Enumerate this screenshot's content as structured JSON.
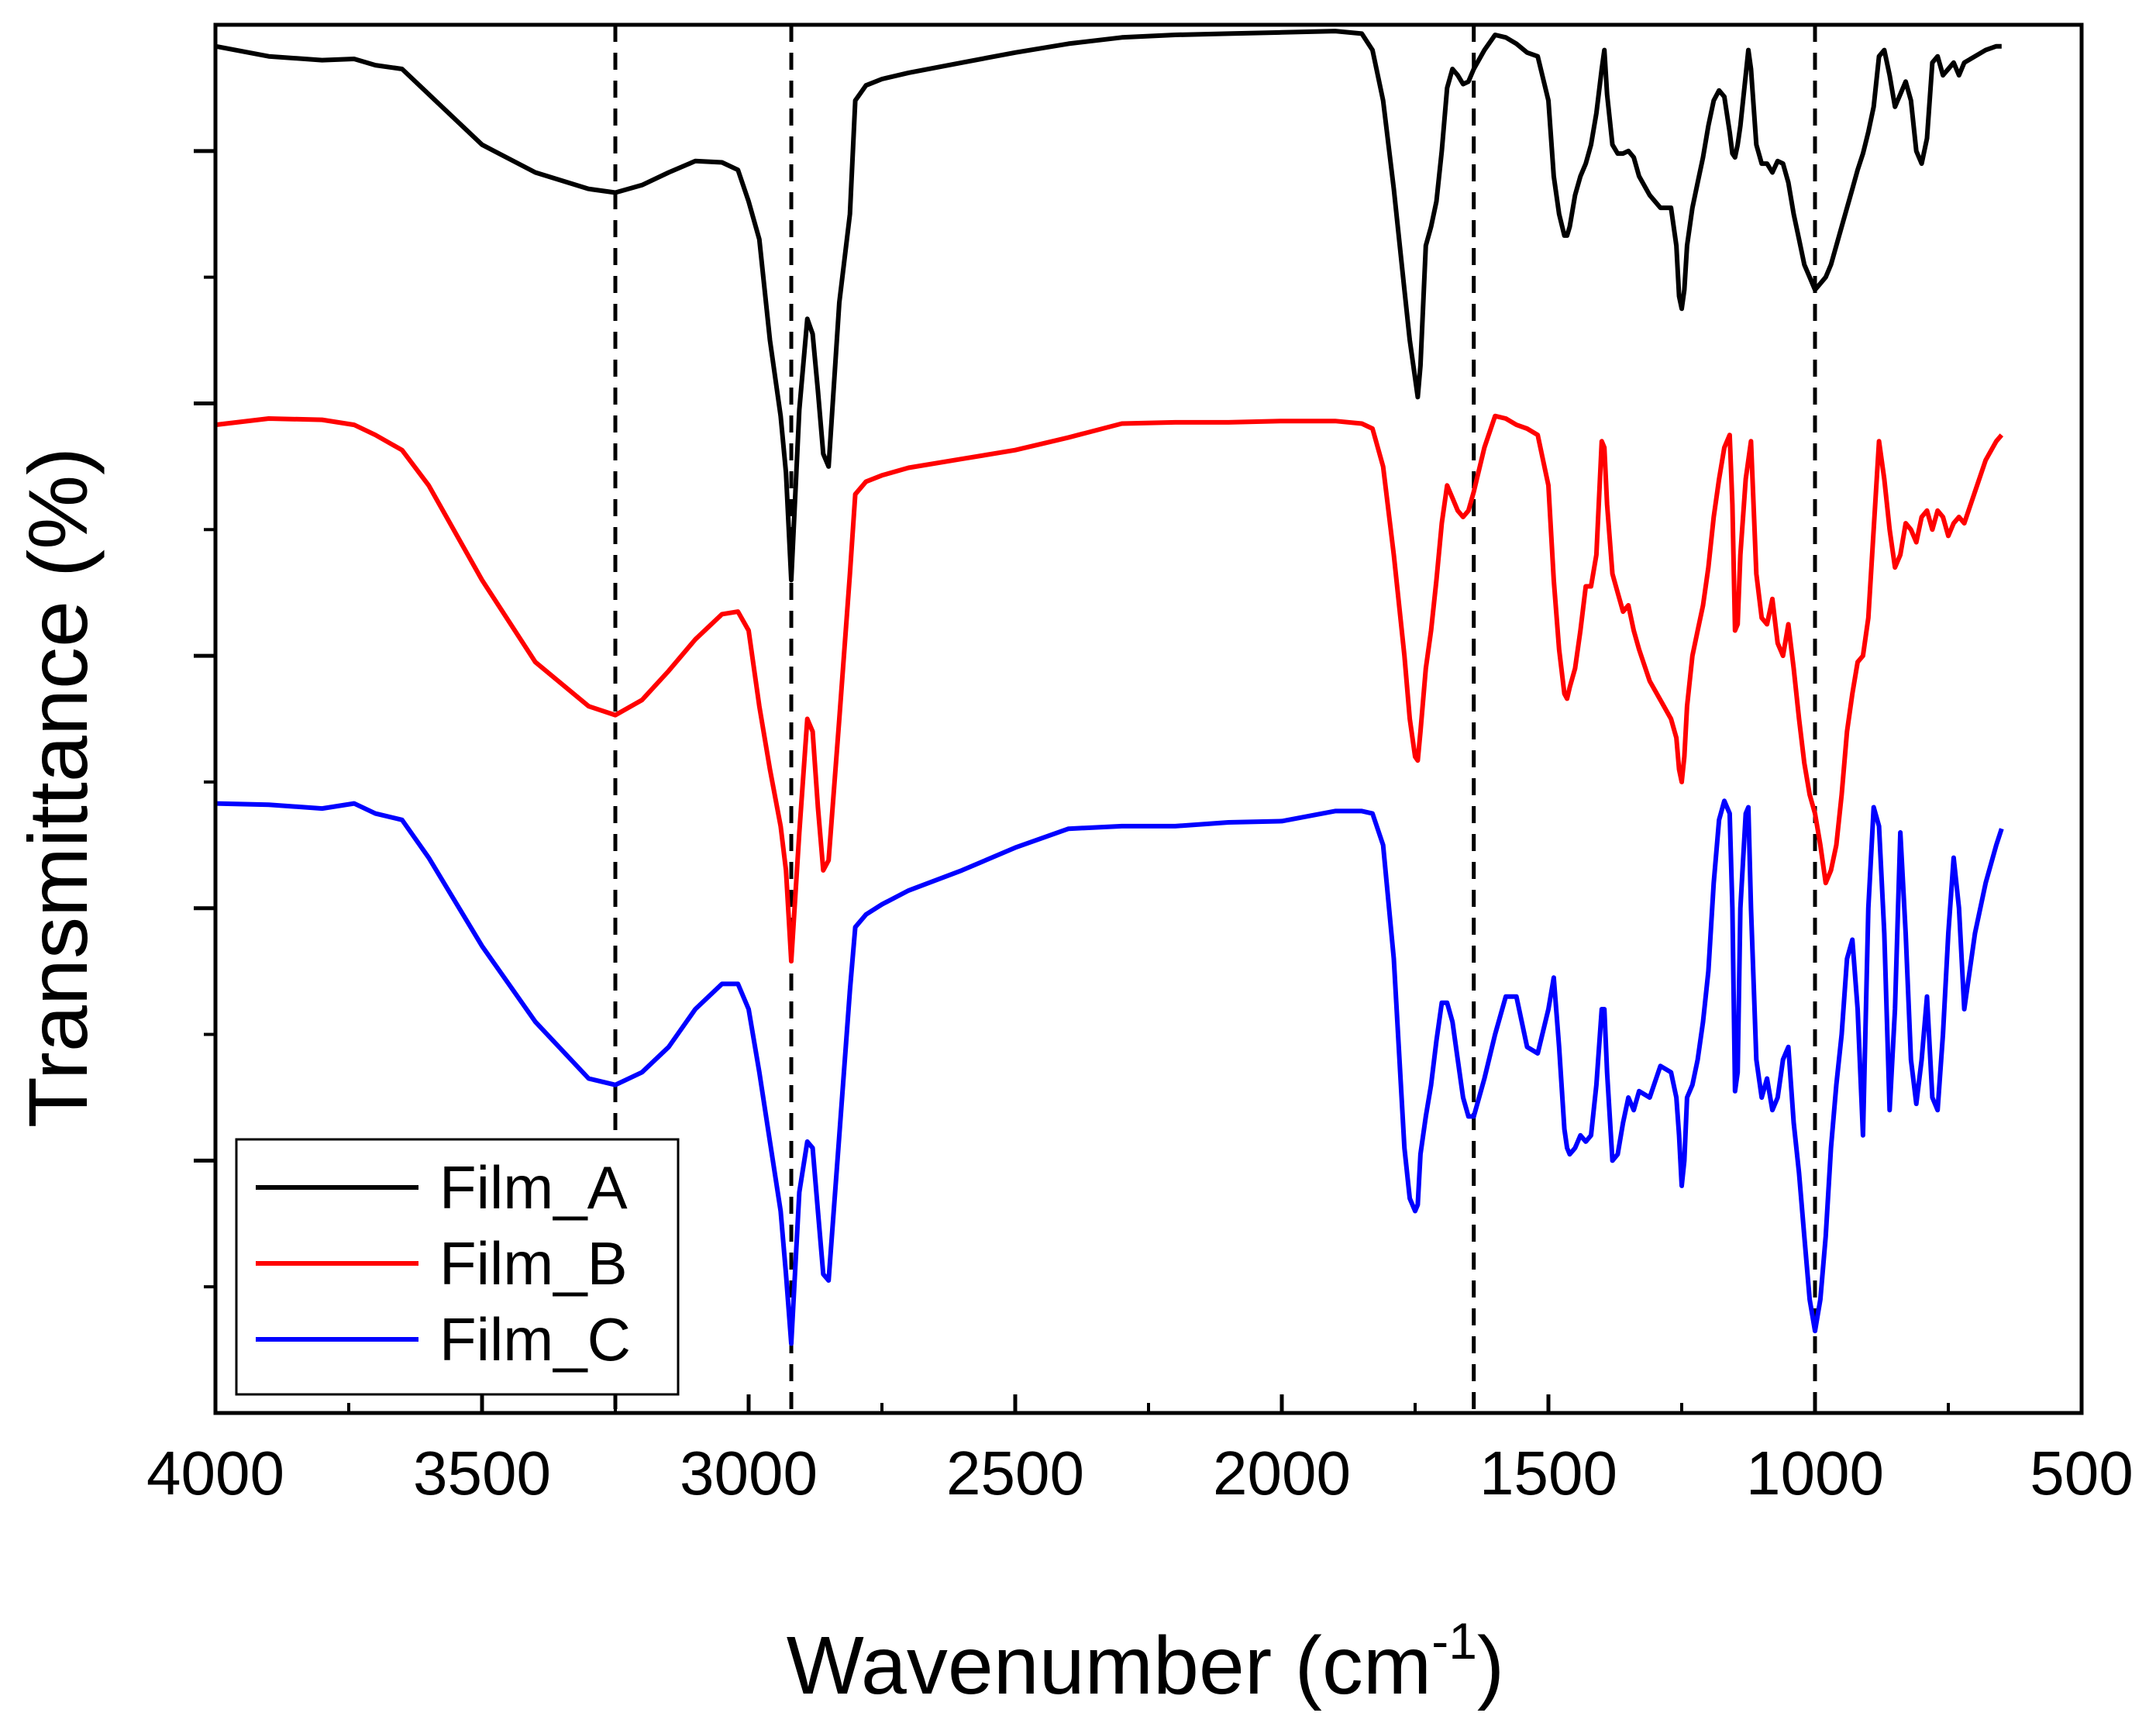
{
  "chart_data": {
    "type": "line",
    "title": "",
    "xlabel": "Wavenumber (cm",
    "xlabel_superscript": "-1",
    "xlabel_close": ")",
    "ylabel": "Transmittance (%)",
    "xlim": [
      4000,
      500
    ],
    "ylim": [
      0,
      110
    ],
    "x_reversed": true,
    "y_tick_labels_shown": false,
    "x_ticks": [
      4000,
      3500,
      3000,
      2500,
      2000,
      1500,
      1000,
      500
    ],
    "x_tick_labels": [
      "4000",
      "3500",
      "3000",
      "2500",
      "2000",
      "1500",
      "1000",
      "500"
    ],
    "y_major_ticks": [
      20,
      40,
      60,
      80,
      100
    ],
    "y_minor_ticks": [
      10,
      30,
      50,
      70,
      90
    ],
    "reference_lines": [
      3250,
      2920,
      1640,
      1000
    ],
    "legend": {
      "position": "bottom-left",
      "entries": [
        "Film_A",
        "Film_B",
        "Film_C"
      ]
    },
    "series": [
      {
        "name": "Film_A",
        "color": "#000000",
        "x": [
          4000,
          3900,
          3800,
          3740,
          3700,
          3650,
          3600,
          3500,
          3400,
          3300,
          3250,
          3200,
          3150,
          3100,
          3050,
          3020,
          3000,
          2980,
          2960,
          2940,
          2930,
          2920,
          2905,
          2890,
          2880,
          2870,
          2860,
          2850,
          2830,
          2810,
          2800,
          2780,
          2750,
          2700,
          2600,
          2500,
          2400,
          2300,
          2200,
          2100,
          2000,
          1900,
          1850,
          1830,
          1810,
          1790,
          1770,
          1760,
          1750,
          1745,
          1740,
          1730,
          1720,
          1710,
          1700,
          1690,
          1680,
          1670,
          1660,
          1650,
          1640,
          1620,
          1600,
          1580,
          1560,
          1540,
          1520,
          1500,
          1490,
          1480,
          1470,
          1465,
          1460,
          1450,
          1440,
          1430,
          1420,
          1410,
          1400,
          1395,
          1390,
          1380,
          1370,
          1360,
          1350,
          1340,
          1330,
          1310,
          1290,
          1270,
          1260,
          1255,
          1250,
          1245,
          1240,
          1230,
          1220,
          1210,
          1200,
          1190,
          1180,
          1170,
          1160,
          1155,
          1150,
          1145,
          1140,
          1130,
          1125,
          1120,
          1110,
          1100,
          1090,
          1080,
          1070,
          1060,
          1050,
          1040,
          1030,
          1020,
          1010,
          1000,
          990,
          980,
          970,
          960,
          950,
          940,
          930,
          920,
          910,
          900,
          890,
          880,
          870,
          860,
          850,
          840,
          830,
          820,
          810,
          800,
          790,
          780,
          770,
          760,
          750,
          740,
          730,
          720,
          700,
          680,
          660,
          650
        ],
        "y": [
          108.3,
          107.5,
          107.2,
          107.3,
          106.8,
          106.5,
          104.5,
          100.5,
          98.3,
          97.0,
          96.7,
          97.3,
          98.3,
          99.2,
          99.1,
          98.5,
          96.0,
          93.0,
          85.0,
          79.0,
          74.5,
          66.0,
          79.5,
          86.7,
          85.5,
          81.0,
          76.0,
          75.0,
          88.0,
          95.0,
          104.0,
          105.2,
          105.7,
          106.2,
          107.0,
          107.8,
          108.5,
          109.0,
          109.2,
          109.3,
          109.4,
          109.5,
          109.3,
          108.0,
          104.0,
          97.0,
          89.0,
          85.0,
          82.0,
          80.5,
          83.0,
          92.5,
          94.0,
          96.0,
          100.0,
          105.0,
          106.5,
          106.0,
          105.3,
          105.5,
          106.5,
          108.0,
          109.2,
          109.0,
          108.5,
          107.8,
          107.5,
          104.0,
          98.0,
          95.0,
          93.3,
          93.3,
          94.0,
          96.5,
          98.0,
          99.0,
          100.5,
          103.0,
          106.5,
          108.0,
          104.5,
          100.5,
          99.8,
          99.8,
          100.0,
          99.5,
          98.0,
          96.5,
          95.5,
          95.5,
          92.5,
          88.5,
          87.5,
          89.0,
          92.5,
          95.5,
          97.5,
          99.5,
          102.0,
          104.0,
          104.8,
          104.3,
          101.5,
          99.8,
          99.5,
          100.5,
          102.0,
          106.0,
          108.0,
          106.5,
          100.5,
          99.0,
          99.0,
          98.3,
          99.2,
          99.0,
          97.5,
          95.0,
          93.0,
          91.0,
          90.0,
          89.0,
          89.5,
          90.0,
          91.0,
          92.5,
          94.0,
          95.5,
          97.0,
          98.5,
          99.8,
          101.5,
          103.5,
          107.5,
          108.0,
          106.0,
          103.5,
          104.5,
          105.5,
          104.0,
          100.0,
          99.0,
          101.0,
          107.0,
          107.5,
          106.0,
          106.5,
          107.0,
          106.0,
          107.0,
          107.5,
          108.0,
          108.3,
          108.3
        ]
      },
      {
        "name": "Film_B",
        "color": "#ff0000",
        "x": [
          4000,
          3900,
          3800,
          3740,
          3700,
          3650,
          3600,
          3500,
          3400,
          3300,
          3250,
          3200,
          3150,
          3100,
          3050,
          3020,
          3000,
          2980,
          2960,
          2940,
          2930,
          2920,
          2905,
          2890,
          2880,
          2870,
          2860,
          2850,
          2830,
          2810,
          2800,
          2780,
          2750,
          2700,
          2600,
          2500,
          2400,
          2300,
          2200,
          2100,
          2000,
          1900,
          1850,
          1830,
          1810,
          1790,
          1770,
          1760,
          1750,
          1745,
          1740,
          1730,
          1720,
          1710,
          1700,
          1690,
          1680,
          1670,
          1660,
          1650,
          1640,
          1620,
          1600,
          1580,
          1560,
          1540,
          1520,
          1500,
          1490,
          1480,
          1470,
          1465,
          1460,
          1450,
          1440,
          1430,
          1420,
          1410,
          1400,
          1395,
          1390,
          1380,
          1370,
          1360,
          1350,
          1340,
          1330,
          1310,
          1290,
          1270,
          1260,
          1255,
          1250,
          1245,
          1240,
          1230,
          1220,
          1210,
          1200,
          1190,
          1180,
          1170,
          1160,
          1155,
          1150,
          1145,
          1140,
          1130,
          1125,
          1120,
          1110,
          1100,
          1090,
          1080,
          1070,
          1060,
          1050,
          1040,
          1030,
          1020,
          1010,
          1000,
          990,
          980,
          970,
          960,
          950,
          940,
          930,
          920,
          910,
          900,
          890,
          880,
          870,
          860,
          850,
          840,
          830,
          820,
          810,
          800,
          790,
          780,
          770,
          760,
          750,
          740,
          730,
          720,
          700,
          680,
          660,
          650
        ],
        "y": [
          78.3,
          78.8,
          78.7,
          78.3,
          77.5,
          76.3,
          73.5,
          66.0,
          59.5,
          56.0,
          55.3,
          56.5,
          58.8,
          61.3,
          63.3,
          63.5,
          62.0,
          56.0,
          51.0,
          46.5,
          43.0,
          35.8,
          46.0,
          55.0,
          54.0,
          48.0,
          43.0,
          43.8,
          55.0,
          66.5,
          72.8,
          73.8,
          74.3,
          74.9,
          75.6,
          76.3,
          77.3,
          78.4,
          78.5,
          78.5,
          78.6,
          78.6,
          78.4,
          78.0,
          75.0,
          68.0,
          60.0,
          55.0,
          52.0,
          51.7,
          54.0,
          59.0,
          62.0,
          66.0,
          70.5,
          73.5,
          72.5,
          71.5,
          71.0,
          71.5,
          73.0,
          76.5,
          79.0,
          78.8,
          78.3,
          78.0,
          77.5,
          73.5,
          66.0,
          60.5,
          57.0,
          56.6,
          57.5,
          59.0,
          62.0,
          65.5,
          65.5,
          68.0,
          77.0,
          76.5,
          72.0,
          66.5,
          65.0,
          63.5,
          64.0,
          62.0,
          60.5,
          58.0,
          56.5,
          55.0,
          53.5,
          51.0,
          50.0,
          52.0,
          56.0,
          60.0,
          62.0,
          64.0,
          67.0,
          71.0,
          74.0,
          76.5,
          77.5,
          72.0,
          62.0,
          62.5,
          68.0,
          74.0,
          75.5,
          77.0,
          66.5,
          63.0,
          62.5,
          64.5,
          61.0,
          60.0,
          62.5,
          59.0,
          55.0,
          51.5,
          49.0,
          47.5,
          45.0,
          42.0,
          43.0,
          45.0,
          49.0,
          54.0,
          57.0,
          59.5,
          60.0,
          63.0,
          70.0,
          77.0,
          74.0,
          70.0,
          67.0,
          68.0,
          70.5,
          70.0,
          69.0,
          71.0,
          71.5,
          70.0,
          71.5,
          71.0,
          69.5,
          70.5,
          71.0,
          70.5,
          73.0,
          75.5,
          77.0,
          77.5
        ]
      },
      {
        "name": "Film_C",
        "color": "#0000ff",
        "x": [
          4000,
          3900,
          3800,
          3740,
          3700,
          3650,
          3600,
          3500,
          3400,
          3300,
          3250,
          3200,
          3150,
          3100,
          3050,
          3020,
          3000,
          2980,
          2960,
          2940,
          2930,
          2920,
          2905,
          2890,
          2880,
          2870,
          2860,
          2850,
          2830,
          2810,
          2800,
          2780,
          2750,
          2700,
          2600,
          2500,
          2400,
          2300,
          2200,
          2100,
          2000,
          1900,
          1850,
          1830,
          1810,
          1790,
          1770,
          1760,
          1750,
          1745,
          1740,
          1730,
          1720,
          1710,
          1700,
          1690,
          1680,
          1670,
          1660,
          1650,
          1640,
          1620,
          1600,
          1580,
          1560,
          1540,
          1520,
          1500,
          1490,
          1480,
          1470,
          1465,
          1460,
          1450,
          1440,
          1430,
          1420,
          1410,
          1400,
          1395,
          1390,
          1380,
          1370,
          1360,
          1350,
          1340,
          1330,
          1310,
          1290,
          1270,
          1260,
          1255,
          1250,
          1245,
          1240,
          1230,
          1220,
          1210,
          1200,
          1190,
          1180,
          1170,
          1160,
          1155,
          1150,
          1145,
          1140,
          1130,
          1125,
          1120,
          1110,
          1100,
          1090,
          1080,
          1070,
          1060,
          1050,
          1040,
          1030,
          1020,
          1010,
          1000,
          990,
          980,
          970,
          960,
          950,
          940,
          930,
          920,
          910,
          900,
          890,
          880,
          870,
          860,
          850,
          840,
          830,
          820,
          810,
          800,
          790,
          780,
          770,
          760,
          750,
          740,
          730,
          720,
          700,
          680,
          660,
          650
        ],
        "y": [
          48.3,
          48.2,
          47.9,
          48.3,
          47.5,
          47.0,
          44.0,
          37.0,
          31.0,
          26.5,
          26.0,
          27.0,
          29.0,
          32.0,
          34.0,
          34.0,
          32.0,
          27.0,
          21.5,
          16.0,
          11.0,
          5.5,
          17.5,
          21.5,
          21.0,
          16.0,
          11.0,
          10.5,
          22.0,
          33.5,
          38.5,
          39.5,
          40.3,
          41.4,
          43.0,
          44.8,
          46.3,
          46.5,
          46.5,
          46.8,
          46.9,
          47.7,
          47.7,
          47.5,
          45.0,
          36.0,
          21.0,
          17.0,
          16.0,
          16.5,
          20.5,
          23.5,
          26.0,
          29.5,
          32.5,
          32.5,
          31.0,
          28.0,
          25.0,
          23.5,
          23.5,
          26.5,
          30.0,
          33.0,
          33.0,
          29.0,
          28.5,
          32.0,
          34.5,
          29.0,
          22.5,
          21.0,
          20.5,
          21.0,
          22.0,
          21.5,
          22.0,
          26.0,
          32.0,
          32.0,
          27.0,
          20.0,
          20.5,
          23.0,
          25.0,
          24.0,
          25.5,
          25.0,
          27.5,
          27.0,
          25.0,
          22.0,
          18.0,
          20.0,
          25.0,
          26.0,
          28.0,
          31.0,
          35.0,
          42.0,
          47.0,
          48.5,
          47.5,
          40.0,
          25.5,
          27.0,
          40.0,
          47.5,
          48.0,
          40.0,
          28.0,
          25.0,
          26.5,
          24.0,
          25.0,
          28.0,
          29.0,
          23.0,
          19.0,
          14.0,
          9.0,
          6.5,
          9.0,
          14.0,
          21.0,
          26.0,
          30.0,
          36.0,
          37.5,
          32.0,
          22.0,
          40.0,
          48.0,
          46.5,
          38.0,
          24.0,
          32.0,
          46.0,
          38.0,
          28.0,
          24.5,
          28.0,
          33.0,
          25.0,
          24.0,
          30.0,
          38.0,
          44.0,
          40.0,
          32.0,
          38.0,
          42.0,
          45.0,
          46.3
        ]
      }
    ]
  }
}
